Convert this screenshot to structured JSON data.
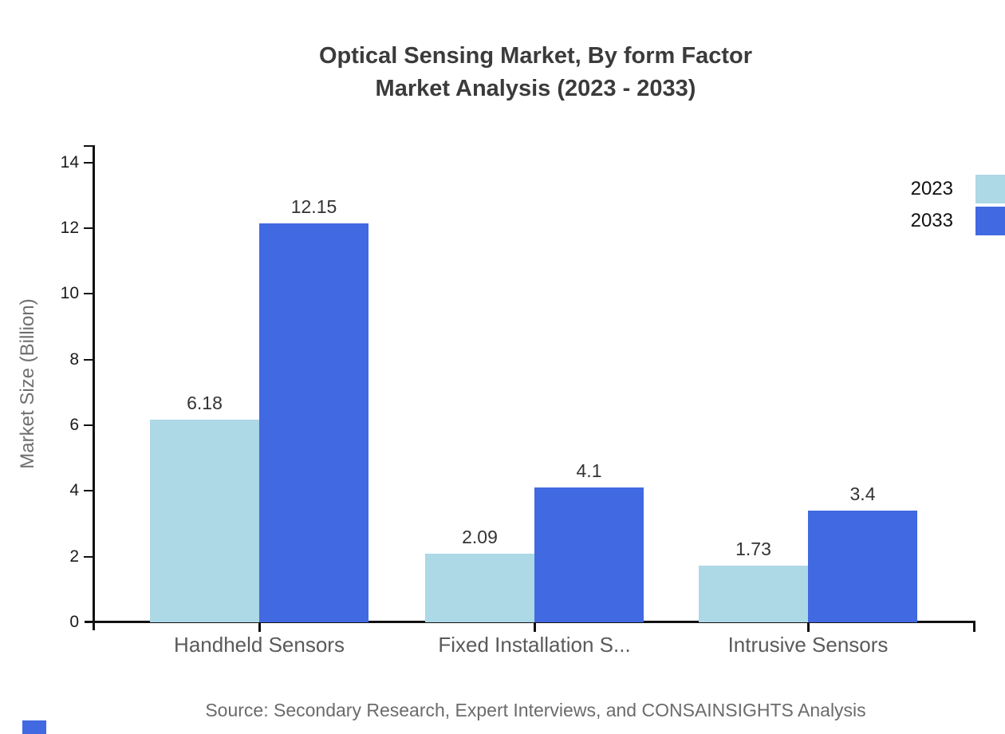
{
  "source_note": "Source: Secondary Research, Expert Interviews, and CONSAINSIGHTS Analysis",
  "brand_mark_color": "#4169E1",
  "chart_data": {
    "type": "bar",
    "title": "Optical Sensing Market, By form Factor",
    "subtitle": "Market Analysis (2023 - 2033)",
    "categories": [
      "Handheld Sensors",
      "Fixed Installation S...",
      "Intrusive Sensors"
    ],
    "series": [
      {
        "name": "2023",
        "color": "#ADD8E6",
        "values": [
          6.18,
          2.09,
          1.73
        ]
      },
      {
        "name": "2033",
        "color": "#4169E1",
        "values": [
          12.15,
          4.1,
          3.4
        ]
      }
    ],
    "ylabel": "Market Size (Billion)",
    "xlabel": "",
    "ylim": [
      0,
      14
    ],
    "yticks": [
      0,
      2,
      4,
      6,
      8,
      10,
      12,
      14
    ],
    "grid": false,
    "legend_position": "top-right",
    "value_labels_shown": true,
    "axis_color": "#111111",
    "text_colors": {
      "title": "#3b3b3b",
      "value_label": "#333333",
      "tick_label": "#1a1a1a",
      "category_label": "#5a5a5a",
      "axis_title": "#6f6f6f",
      "source": "#6b6b6b",
      "legend_label": "#111111"
    }
  }
}
